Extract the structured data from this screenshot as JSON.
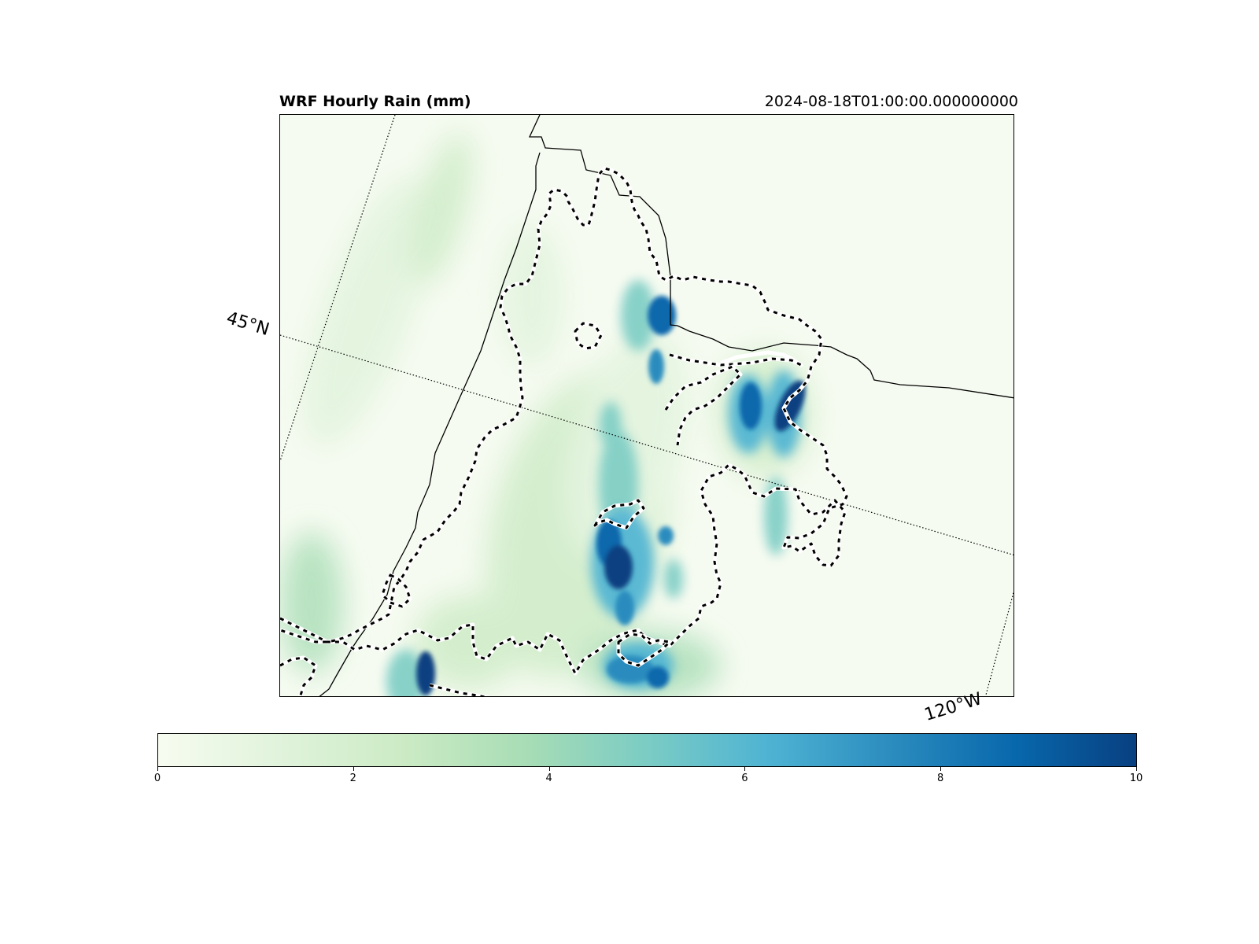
{
  "title_left": "WRF Hourly Rain (mm)",
  "title_right": "2024-08-18T01:00:00.000000000",
  "gridlines": {
    "lat_label": "45°N",
    "lon_label": "120°W"
  },
  "colorbar": {
    "cmap": "GnBu",
    "range": [
      0,
      10
    ],
    "tick_labels": [
      "0",
      "2",
      "4",
      "6",
      "8",
      "10"
    ],
    "colors": [
      "#f7fcf0",
      "#e0f3db",
      "#ccebc5",
      "#a8ddb5",
      "#7bccc4",
      "#4eb3d3",
      "#2b8cbe",
      "#0868ac",
      "#084081"
    ]
  },
  "chart_data": {
    "type": "heatmap",
    "title": "WRF Hourly Rain (mm)",
    "valid_time": "2024-08-18T01:00:00.000000000",
    "value_range": [
      0,
      10
    ],
    "colorbar_ticks": [
      0,
      2,
      4,
      6,
      8,
      10
    ],
    "rain_maxima_mm": [
      10,
      10,
      9,
      9,
      10,
      8,
      9,
      8
    ],
    "overlays": [
      "state borders (solid black)",
      "domain contour (dashed black/white)",
      "lat/lon gridlines (dotted)"
    ]
  }
}
